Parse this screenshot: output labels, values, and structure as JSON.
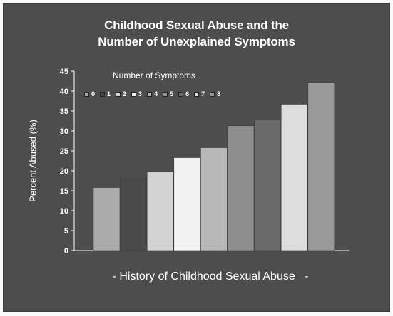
{
  "chart_data": {
    "type": "bar",
    "title_lines": [
      "Childhood Sexual Abuse and the",
      "Number of Unexplained Symptoms"
    ],
    "xlabel": "- History of Childhood Sexual Abuse   -",
    "ylabel": "Percent Abused (%)",
    "ylim": [
      0,
      45
    ],
    "yticks": [
      0,
      5,
      10,
      15,
      20,
      25,
      30,
      35,
      40,
      45
    ],
    "grid": false,
    "legend_title": "Number of Symptoms",
    "legend_position": "top-left",
    "series": [
      {
        "name": "0",
        "values": [
          15.8
        ],
        "color": "#ababab"
      },
      {
        "name": "1",
        "values": [
          18.5
        ],
        "color": "#4a4a4a"
      },
      {
        "name": "2",
        "values": [
          19.8
        ],
        "color": "#d2d2d2"
      },
      {
        "name": "3",
        "values": [
          23.3
        ],
        "color": "#f2f2f2"
      },
      {
        "name": "4",
        "values": [
          25.8
        ],
        "color": "#b8b8b8"
      },
      {
        "name": "5",
        "values": [
          31.3
        ],
        "color": "#8e8e8e"
      },
      {
        "name": "6",
        "values": [
          32.8
        ],
        "color": "#6a6a6a"
      },
      {
        "name": "7",
        "values": [
          36.7
        ],
        "color": "#dddddd"
      },
      {
        "name": "8",
        "values": [
          42.2
        ],
        "color": "#9a9a9a"
      }
    ]
  }
}
